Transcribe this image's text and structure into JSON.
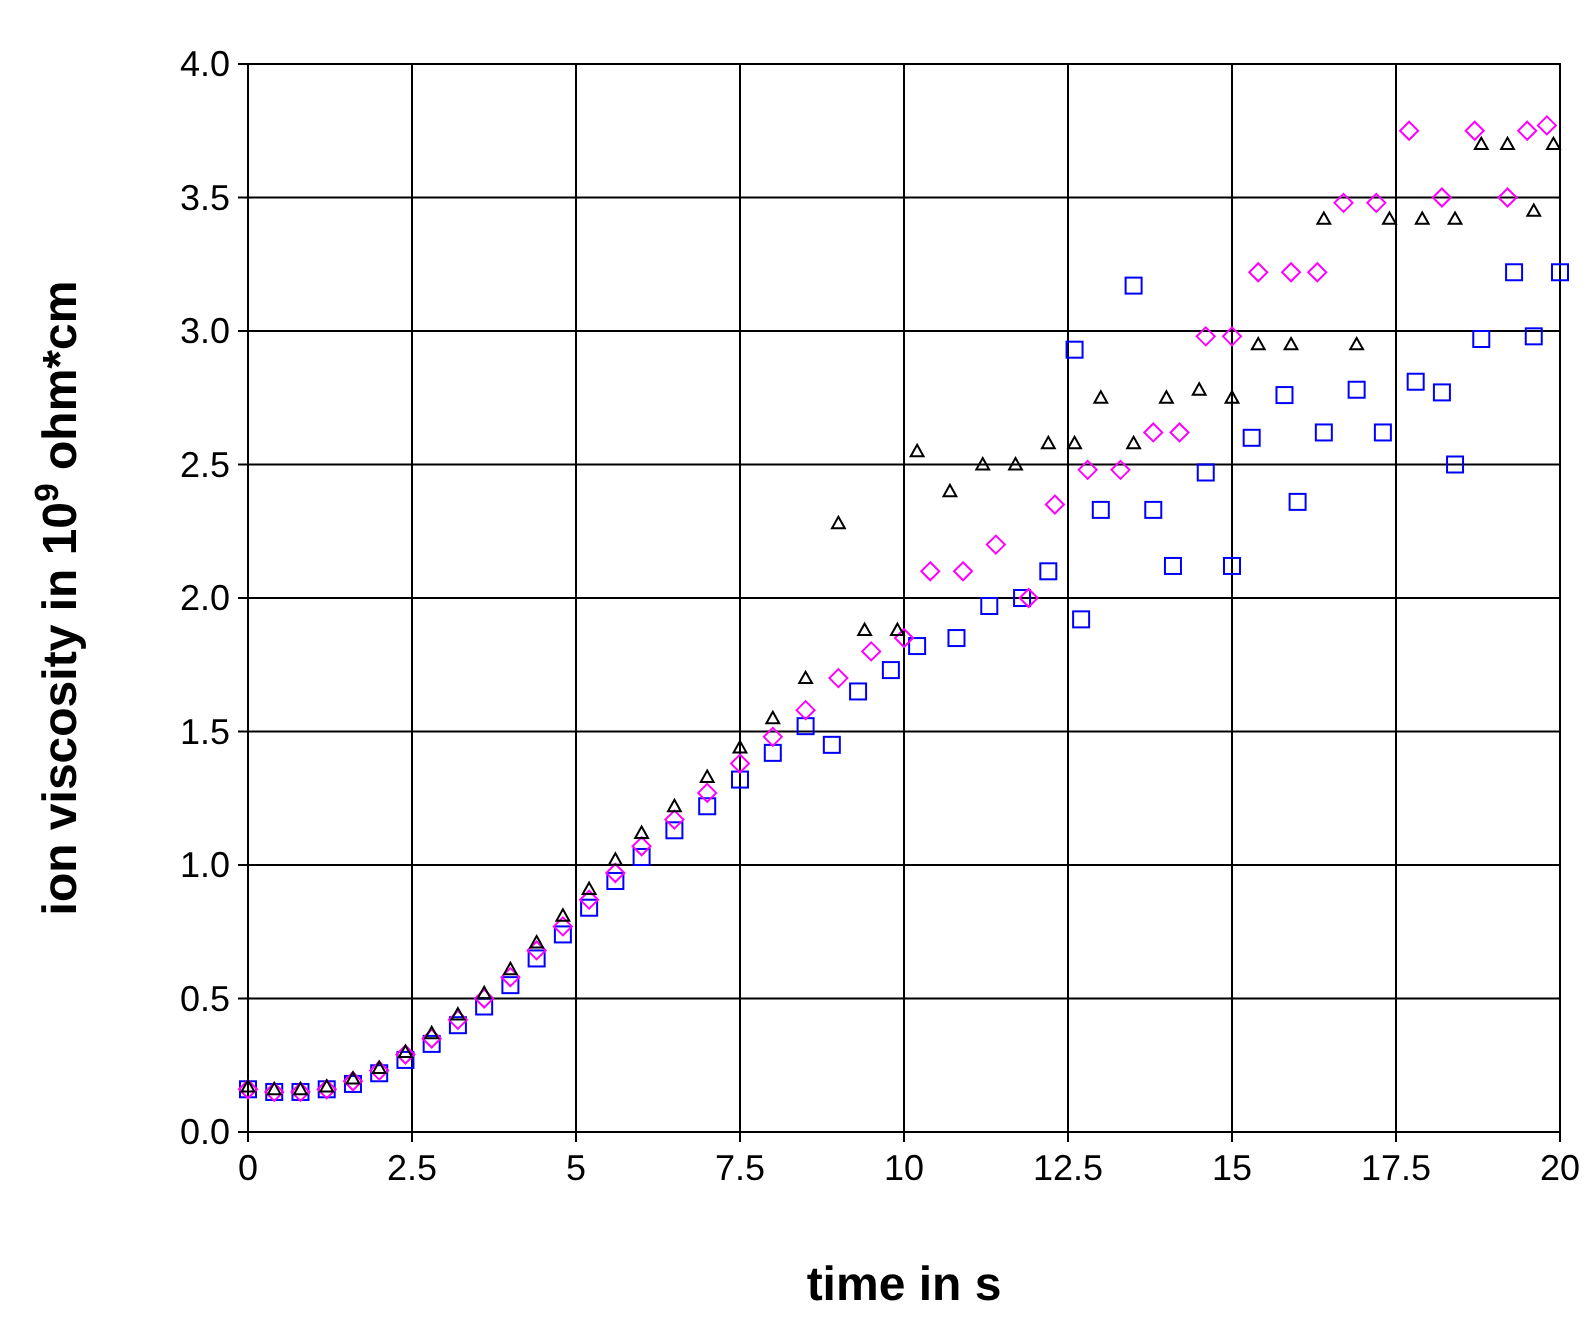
{
  "chart_data": {
    "type": "scatter",
    "xlabel": "time in s",
    "ylabel": "ion viscosity in 10$^{9}$ ohm*cm",
    "xlim": [
      0,
      20
    ],
    "ylim": [
      0,
      4
    ],
    "xticks": [
      0,
      2.5,
      5,
      7.5,
      10,
      12.5,
      15,
      17.5,
      20
    ],
    "yticks": [
      {
        "value": 0,
        "label": "0.0"
      },
      {
        "value": 0.5,
        "label": "0.5"
      },
      {
        "value": 1,
        "label": "1.0"
      },
      {
        "value": 1.5,
        "label": "1.5"
      },
      {
        "value": 2,
        "label": "2.0"
      },
      {
        "value": 2.5,
        "label": "2.5"
      },
      {
        "value": 3,
        "label": "3.0"
      },
      {
        "value": 3.5,
        "label": "3.5"
      },
      {
        "value": 4,
        "label": "4.0"
      }
    ],
    "grid": true,
    "series": [
      {
        "color": "#0000ff",
        "marker": "square",
        "x": [
          0,
          0.4,
          0.8,
          1.2,
          1.6,
          2,
          2.4,
          2.8,
          3.2,
          3.6,
          4,
          4.4,
          4.8,
          5.2,
          5.6,
          6,
          6.5,
          7,
          7.5,
          8,
          8.5,
          8.9,
          9.3,
          9.8,
          10.2,
          10.8,
          11.3,
          11.8,
          12.2,
          12.6,
          12.7,
          13,
          13.5,
          13.8,
          14.1,
          14.6,
          15,
          15.3,
          15.8,
          16,
          16.4,
          16.9,
          17.3,
          17.8,
          18.2,
          18.4,
          18.8,
          19.3,
          19.6,
          20
        ],
        "values": [
          0.16,
          0.15,
          0.15,
          0.16,
          0.18,
          0.22,
          0.27,
          0.33,
          0.4,
          0.47,
          0.55,
          0.65,
          0.74,
          0.84,
          0.94,
          1.03,
          1.13,
          1.22,
          1.32,
          1.42,
          1.52,
          1.45,
          1.65,
          1.73,
          1.82,
          1.85,
          1.97,
          2.0,
          2.1,
          2.93,
          1.92,
          2.33,
          3.17,
          2.33,
          2.12,
          2.47,
          2.12,
          2.6,
          2.76,
          2.36,
          2.62,
          2.78,
          2.62,
          2.81,
          2.77,
          2.5,
          2.97,
          3.22,
          2.98,
          3.22
        ]
      },
      {
        "color": "#ff00ff",
        "marker": "diamond",
        "x": [
          0,
          0.4,
          0.8,
          1.2,
          1.6,
          2,
          2.4,
          2.8,
          3.2,
          3.6,
          4,
          4.4,
          4.8,
          5.2,
          5.6,
          6,
          6.5,
          7,
          7.5,
          8,
          8.5,
          9,
          9.5,
          10,
          10.4,
          10.9,
          11.4,
          11.9,
          12.3,
          12.8,
          13.3,
          13.8,
          14.2,
          14.6,
          15,
          15.4,
          15.9,
          16.3,
          16.7,
          17.2,
          17.7,
          18.2,
          18.7,
          19.2,
          19.5,
          19.8
        ],
        "values": [
          0.16,
          0.15,
          0.15,
          0.16,
          0.19,
          0.23,
          0.29,
          0.35,
          0.42,
          0.5,
          0.58,
          0.68,
          0.77,
          0.87,
          0.97,
          1.07,
          1.17,
          1.27,
          1.38,
          1.48,
          1.58,
          1.7,
          1.8,
          1.85,
          2.1,
          2.1,
          2.2,
          2.0,
          2.35,
          2.48,
          2.48,
          2.62,
          2.62,
          2.98,
          2.98,
          3.22,
          3.22,
          3.22,
          3.48,
          3.48,
          3.75,
          3.5,
          3.75,
          3.5,
          3.75,
          3.77
        ]
      },
      {
        "color": "#000000",
        "marker": "triangle",
        "x": [
          0,
          0.4,
          0.8,
          1.2,
          1.6,
          2,
          2.4,
          2.8,
          3.2,
          3.6,
          4,
          4.4,
          4.8,
          5.2,
          5.6,
          6,
          6.5,
          7,
          7.5,
          8,
          8.5,
          9,
          9.4,
          9.9,
          10.2,
          10.7,
          11.2,
          11.7,
          12.2,
          12.6,
          13,
          13.5,
          14,
          14.5,
          15,
          15.4,
          15.9,
          16.4,
          16.9,
          17.4,
          17.9,
          18.4,
          18.8,
          19.2,
          19.6,
          19.9
        ],
        "values": [
          0.17,
          0.16,
          0.16,
          0.17,
          0.2,
          0.24,
          0.3,
          0.37,
          0.44,
          0.52,
          0.61,
          0.71,
          0.81,
          0.91,
          1.02,
          1.12,
          1.22,
          1.33,
          1.44,
          1.55,
          1.7,
          2.28,
          1.88,
          1.88,
          2.55,
          2.4,
          2.5,
          2.5,
          2.58,
          2.58,
          2.75,
          2.58,
          2.75,
          2.78,
          2.75,
          2.95,
          2.95,
          3.42,
          2.95,
          3.42,
          3.42,
          3.42,
          3.7,
          3.7,
          3.45,
          3.7
        ]
      }
    ]
  }
}
